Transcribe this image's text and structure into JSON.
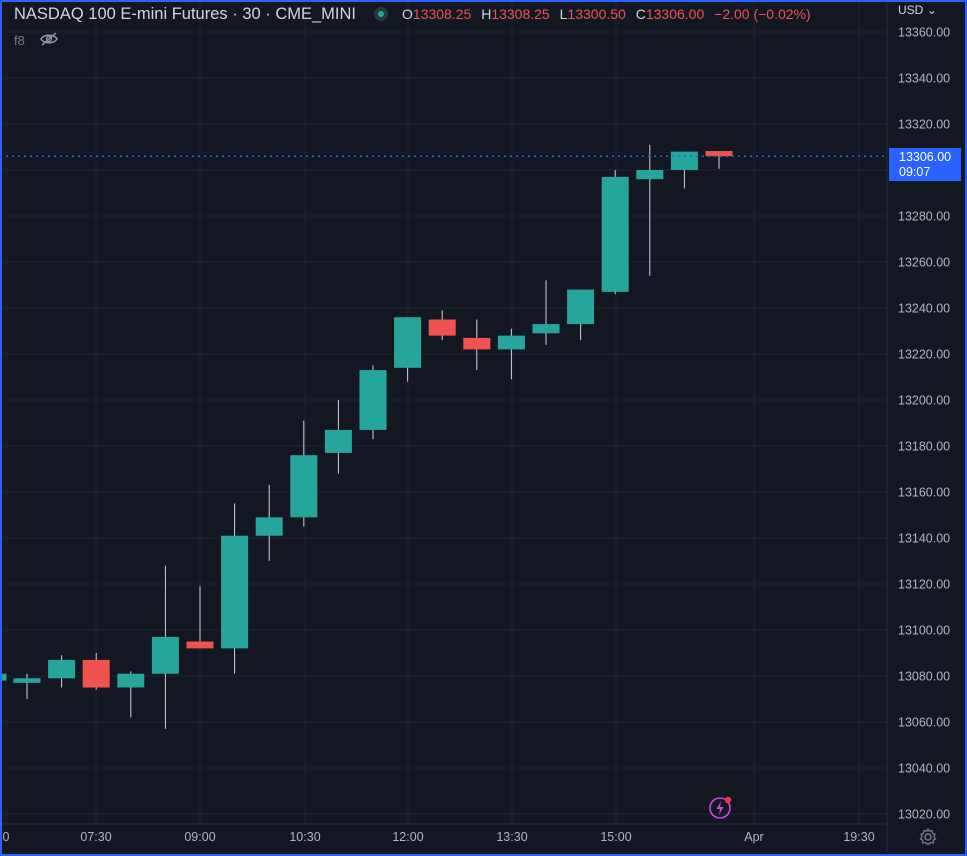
{
  "header": {
    "title": "NASDAQ 100 E-mini Futures · 30 · CME_MINI",
    "open_key": "O",
    "open": "13308.25",
    "high_key": "H",
    "high": "13308.25",
    "low_key": "L",
    "low": "13300.50",
    "close_key": "C",
    "close": "13306.00",
    "change": "−2.00 (−0.02%)",
    "indicator_label": "f8"
  },
  "currency": "USD",
  "last_price": {
    "price": "13306.00",
    "countdown": "09:07"
  },
  "colors": {
    "up": "#26a69a",
    "down": "#ef5350",
    "accent": "#2962ff",
    "background": "#131722",
    "grid": "#1f2330"
  },
  "icons": [
    "status-dot-icon",
    "eye-hidden-icon",
    "currency-dropdown-icon",
    "lightning-icon",
    "gear-icon"
  ],
  "chart_data": {
    "type": "candlestick",
    "title": "NASDAQ 100 E-mini Futures · 30 · CME_MINI",
    "y_ticks": [
      13360,
      13340,
      13320,
      13300,
      13280,
      13260,
      13240,
      13220,
      13200,
      13180,
      13160,
      13140,
      13120,
      13100,
      13080,
      13060,
      13040,
      13020
    ],
    "y_tick_labels": [
      "13360.00",
      "13340.00",
      "13320.00",
      "13300.00",
      "13280.00",
      "13260.00",
      "13240.00",
      "13220.00",
      "13200.00",
      "13180.00",
      "13160.00",
      "13140.00",
      "13120.00",
      "13100.00",
      "13080.00",
      "13060.00",
      "13040.00",
      "13020.00"
    ],
    "x_tick_labels": [
      "0",
      "07:30",
      "09:00",
      "10:30",
      "12:00",
      "13:30",
      "15:00",
      "Apr",
      "19:30"
    ],
    "ylim": [
      13018,
      13366
    ],
    "grid": true,
    "last_price_line": 13306.0,
    "candles": [
      {
        "o": 13078,
        "h": 13081,
        "l": 13070,
        "c": 13081
      },
      {
        "o": 13077,
        "h": 13081,
        "l": 13070,
        "c": 13079
      },
      {
        "o": 13079,
        "h": 13089,
        "l": 13075,
        "c": 13087
      },
      {
        "o": 13087,
        "h": 13090,
        "l": 13074,
        "c": 13075
      },
      {
        "o": 13075,
        "h": 13082,
        "l": 13062,
        "c": 13081
      },
      {
        "o": 13081,
        "h": 13128,
        "l": 13057,
        "c": 13097
      },
      {
        "o": 13095,
        "h": 13119,
        "l": 13092,
        "c": 13092
      },
      {
        "o": 13092,
        "h": 13155,
        "l": 13081,
        "c": 13141
      },
      {
        "o": 13141,
        "h": 13163,
        "l": 13130,
        "c": 13149
      },
      {
        "o": 13149,
        "h": 13191,
        "l": 13145,
        "c": 13176
      },
      {
        "o": 13177,
        "h": 13200,
        "l": 13168,
        "c": 13187
      },
      {
        "o": 13187,
        "h": 13215,
        "l": 13183,
        "c": 13213
      },
      {
        "o": 13214,
        "h": 13236,
        "l": 13208,
        "c": 13236
      },
      {
        "o": 13235,
        "h": 13239,
        "l": 13226,
        "c": 13228
      },
      {
        "o": 13227,
        "h": 13235,
        "l": 13213,
        "c": 13222
      },
      {
        "o": 13222,
        "h": 13231,
        "l": 13209,
        "c": 13228
      },
      {
        "o": 13229,
        "h": 13252,
        "l": 13224,
        "c": 13233
      },
      {
        "o": 13233,
        "h": 13248,
        "l": 13226,
        "c": 13248
      },
      {
        "o": 13247,
        "h": 13300,
        "l": 13246,
        "c": 13297
      },
      {
        "o": 13296,
        "h": 13311,
        "l": 13254,
        "c": 13300
      },
      {
        "o": 13300,
        "h": 13308,
        "l": 13292,
        "c": 13308
      },
      {
        "o": 13308.25,
        "h": 13308.25,
        "l": 13300.5,
        "c": 13306.0
      }
    ]
  }
}
